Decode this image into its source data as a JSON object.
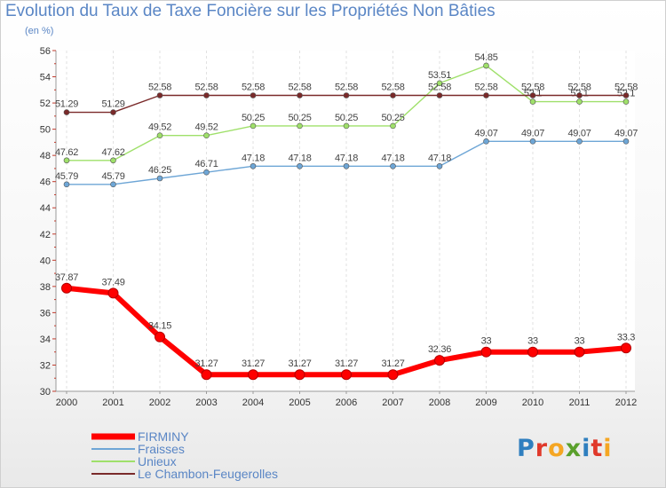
{
  "title": "Evolution du Taux de Taxe Foncière sur les Propriétés Non Bâties",
  "unit": "(en %)",
  "brand": {
    "text": "Proxiti",
    "letter_colors": [
      "#2f7fbf",
      "#e0392b",
      "#f5a623",
      "#5aa02c",
      "#2f7fbf",
      "#e0392b",
      "#f5a623"
    ]
  },
  "chart_data": {
    "type": "line",
    "title": "Evolution du Taux de Taxe Foncière sur les Propriétés Non Bâties",
    "ylabel": "(en %)",
    "xlabel": "",
    "x": [
      "2000",
      "2001",
      "2002",
      "2003",
      "2004",
      "2005",
      "2006",
      "2007",
      "2008",
      "2009",
      "2010",
      "2011",
      "2012"
    ],
    "ylim": [
      30,
      56
    ],
    "yticks": [
      30,
      32,
      34,
      36,
      38,
      40,
      42,
      44,
      46,
      48,
      50,
      52,
      54,
      56
    ],
    "grid": "dashed vertical",
    "legend": "bottom-left",
    "series": [
      {
        "name": "FIRMINY",
        "color": "#ff0000",
        "emphasis": true,
        "values": [
          37.87,
          37.49,
          34.15,
          31.27,
          31.27,
          31.27,
          31.27,
          31.27,
          32.36,
          33,
          33,
          33,
          33.3
        ],
        "labels": [
          "37.87",
          "37.49",
          "34.15",
          "31.27",
          "31.27",
          "31.27",
          "31.27",
          "31.27",
          "32.36",
          "33",
          "33",
          "33",
          "33.3"
        ]
      },
      {
        "name": "Fraisses",
        "color": "#6ea6d6",
        "values": [
          45.79,
          45.79,
          46.25,
          46.71,
          47.18,
          47.18,
          47.18,
          47.18,
          47.18,
          49.07,
          49.07,
          49.07,
          49.07
        ],
        "labels": [
          "45.79",
          "45.79",
          "46.25",
          "46.71",
          "47.18",
          "47.18",
          "47.18",
          "47.18",
          "47.18",
          "49.07",
          "49.07",
          "49.07",
          "49.07"
        ]
      },
      {
        "name": "Unieux",
        "color": "#9fe06a",
        "values": [
          47.62,
          47.62,
          49.52,
          49.52,
          50.25,
          50.25,
          50.25,
          50.25,
          53.51,
          54.85,
          52.1,
          52.1,
          52.1
        ],
        "labels": [
          "47.62",
          "47.62",
          "49.52",
          "49.52",
          "50.25",
          "50.25",
          "50.25",
          "50.25",
          "53.51",
          "54.85",
          "52.1",
          "52.1",
          "52.1"
        ]
      },
      {
        "name": "Le Chambon-Feugerolles",
        "color": "#7a2a2a",
        "values": [
          51.29,
          51.29,
          52.58,
          52.58,
          52.58,
          52.58,
          52.58,
          52.58,
          52.58,
          52.58,
          52.58,
          52.58,
          52.58
        ],
        "labels": [
          "51.29",
          "51.29",
          "52.58",
          "52.58",
          "52.58",
          "52.58",
          "52.58",
          "52.58",
          "52.58",
          "52.58",
          "52.58",
          "52.58",
          "52.58"
        ]
      }
    ]
  }
}
